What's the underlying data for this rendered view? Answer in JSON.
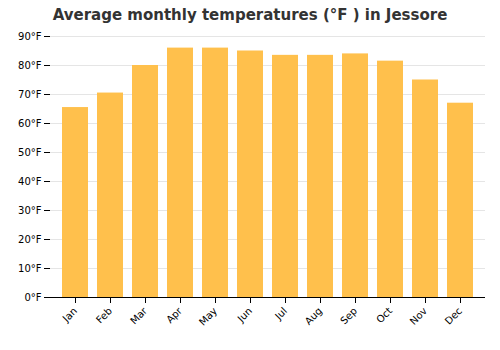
{
  "chart_data": {
    "type": "bar",
    "title": "Average monthly temperatures (°F ) in Jessore",
    "categories": [
      "Jan",
      "Feb",
      "Mar",
      "Apr",
      "May",
      "Jun",
      "Jul",
      "Aug",
      "Sep",
      "Oct",
      "Nov",
      "Dec"
    ],
    "values": [
      65.5,
      70.5,
      80.0,
      86.0,
      86.0,
      85.0,
      83.5,
      83.5,
      84.0,
      81.5,
      75.0,
      67.0
    ],
    "color": "#FFC04C",
    "ylim": [
      0,
      90
    ],
    "yticks": [
      {
        "value": 0,
        "label": "0°F"
      },
      {
        "value": 10,
        "label": "10°F"
      },
      {
        "value": 20,
        "label": "20°F"
      },
      {
        "value": 30,
        "label": "30°F"
      },
      {
        "value": 40,
        "label": "40°F"
      },
      {
        "value": 50,
        "label": "50°F"
      },
      {
        "value": 60,
        "label": "60°F"
      },
      {
        "value": 70,
        "label": "70°F"
      },
      {
        "value": 80,
        "label": "80°F"
      },
      {
        "value": 90,
        "label": "90°F"
      }
    ],
    "grid": true
  }
}
